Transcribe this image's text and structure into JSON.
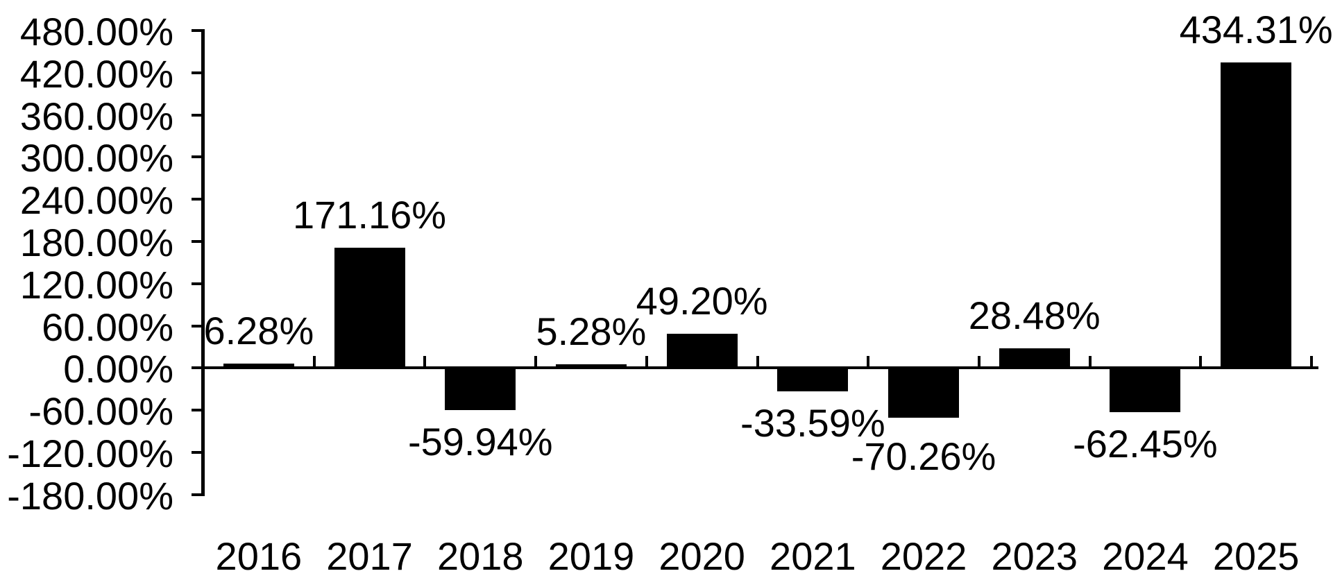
{
  "chart_data": {
    "type": "bar",
    "title": "",
    "categories": [
      "2016",
      "2017",
      "2018",
      "2019",
      "2020",
      "2021",
      "2022",
      "2023",
      "2024",
      "2025"
    ],
    "values": [
      6.28,
      171.16,
      -59.94,
      5.28,
      49.2,
      -33.59,
      -70.26,
      28.48,
      -62.45,
      434.31
    ],
    "data_labels": [
      "6.28%",
      "171.16%",
      "-59.94%",
      "5.28%",
      "49.20%",
      "-33.59%",
      "-70.26%",
      "28.48%",
      "-62.45%",
      "434.31%"
    ],
    "y_tick_labels": [
      "480.00%",
      "420.00%",
      "360.00%",
      "300.00%",
      "240.00%",
      "180.00%",
      "120.00%",
      "60.00%",
      "0.00%",
      "-60.00%",
      "-120.00%",
      "-180.00%"
    ],
    "y_tick_values": [
      480,
      420,
      360,
      300,
      240,
      180,
      120,
      60,
      0,
      -60,
      -120,
      -180
    ],
    "ylim": [
      -180,
      480
    ],
    "y_tick_step": 60,
    "xlabel": "",
    "ylabel": "",
    "grid": false,
    "legend": false,
    "data_label_position": "outside-end",
    "data_label_format": "0.00%",
    "bar_color": "#000000",
    "axis_color": "#000000",
    "text_color": "#000000",
    "background_color": "#ffffff"
  }
}
